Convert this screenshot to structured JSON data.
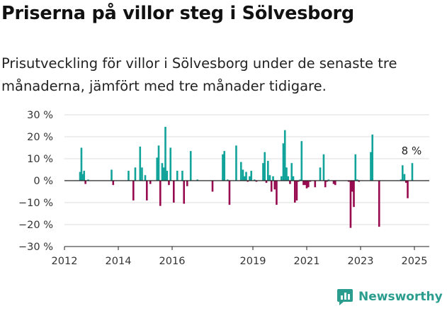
{
  "title": "Priserna på villor steg i Sölvesborg",
  "subtitle": "Prisutveckling för villor i Sölvesborg under de senaste tre månaderna, jämfört med tre månader tidigare.",
  "brand": {
    "name": "Newsworthy"
  },
  "colors": {
    "positive": "#12a39a",
    "negative": "#970a4f",
    "grid": "#dddddd",
    "zero_line": "#222222",
    "brand": "#2a9d8f"
  },
  "chart_data": {
    "type": "bar",
    "title": "Priserna på villor steg i Sölvesborg",
    "xlabel": "",
    "ylabel": "",
    "ylim": [
      -30,
      30
    ],
    "y_ticks": [
      30,
      20,
      10,
      0,
      -10,
      -20,
      -30
    ],
    "y_tick_labels": [
      "30 %",
      "20 %",
      "10 %",
      "0 %",
      "−10 %",
      "−20 %",
      "−30 %"
    ],
    "x_range": [
      2012.0,
      2025.5
    ],
    "x_ticks": [
      2012,
      2014,
      2016,
      2019,
      2021,
      2023,
      2025
    ],
    "x_tick_labels": [
      "2012",
      "2014",
      "2016",
      "2019",
      "2021",
      "2023",
      "2025"
    ],
    "annotation": {
      "label": "8 %",
      "x": 2024.92,
      "value": 8
    },
    "series": [
      {
        "name": "Prisutveckling",
        "x": [
          2012.58,
          2012.63,
          2012.68,
          2012.73,
          2012.78,
          2012.88,
          2013.75,
          2013.81,
          2014.38,
          2014.56,
          2014.63,
          2014.81,
          2014.88,
          2015.0,
          2015.06,
          2015.19,
          2015.44,
          2015.5,
          2015.56,
          2015.63,
          2015.69,
          2015.75,
          2015.81,
          2015.88,
          2015.94,
          2016.06,
          2016.19,
          2016.38,
          2016.44,
          2016.56,
          2016.69,
          2016.94,
          2017.5,
          2017.88,
          2017.94,
          2018.06,
          2018.13,
          2018.38,
          2018.56,
          2018.63,
          2018.69,
          2018.75,
          2018.81,
          2018.88,
          2018.94,
          2019.06,
          2019.13,
          2019.38,
          2019.44,
          2019.5,
          2019.56,
          2019.63,
          2019.69,
          2019.75,
          2019.81,
          2019.88,
          2020.06,
          2020.13,
          2020.19,
          2020.25,
          2020.31,
          2020.38,
          2020.44,
          2020.5,
          2020.56,
          2020.63,
          2020.69,
          2020.75,
          2020.81,
          2020.88,
          2020.94,
          2021.0,
          2021.06,
          2021.13,
          2021.31,
          2021.5,
          2021.63,
          2021.69,
          2021.75,
          2021.81,
          2022.0,
          2022.06,
          2022.56,
          2022.63,
          2022.69,
          2022.75,
          2022.81,
          2022.88,
          2022.94,
          2023.38,
          2023.44,
          2023.69,
          2024.5,
          2024.56,
          2024.63,
          2024.69,
          2024.75,
          2024.92
        ],
        "values": [
          4,
          15,
          3,
          4.5,
          -1.5,
          0.5,
          5,
          -2,
          4.5,
          -9,
          6,
          15.5,
          6,
          2.5,
          -9,
          -1.5,
          10.5,
          16,
          -11.5,
          8,
          6,
          24.5,
          4.5,
          -2,
          15,
          -10,
          4.5,
          4.5,
          -10.5,
          -2.5,
          13.5,
          0.5,
          -5,
          12,
          13.5,
          0.5,
          -11,
          16,
          8.5,
          5,
          2,
          4,
          -0.5,
          2,
          4.5,
          0.5,
          -0.5,
          8,
          13,
          -1,
          9,
          2.5,
          -5,
          2,
          -4,
          -11,
          2,
          17,
          23,
          6,
          2,
          -1.5,
          8,
          2,
          -10,
          -9,
          -0.5,
          0.5,
          18,
          -2,
          -2,
          -3.5,
          -3,
          -0.5,
          -3,
          6,
          12,
          -3,
          -0.5,
          0.5,
          -1.5,
          -2,
          -0.5,
          -21.5,
          -5,
          -12,
          12,
          0.5,
          -0.5,
          13,
          21,
          -21,
          0.5,
          7,
          3,
          -1,
          -8,
          8
        ]
      }
    ]
  }
}
